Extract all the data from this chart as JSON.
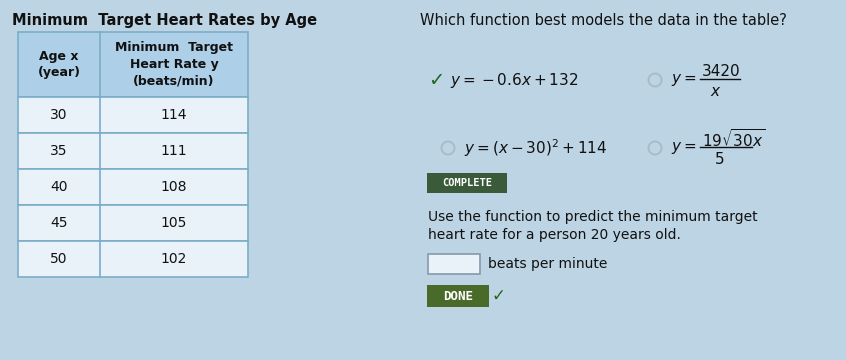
{
  "title_left": "Minimum  Target Heart Rates by Age",
  "title_right": "Which function best models the data in the table?",
  "table_headers": [
    "Age x\n(year)",
    "Minimum  Target\nHeart Rate y\n(beats/min)"
  ],
  "table_data": [
    [
      "30",
      "114"
    ],
    [
      "35",
      "111"
    ],
    [
      "40",
      "108"
    ],
    [
      "45",
      "105"
    ],
    [
      "50",
      "102"
    ]
  ],
  "header_bg": "#aecfe8",
  "table_bg": "#e8f2f8",
  "table_border": "#7aaec8",
  "bg_color": "#bdd4e4",
  "option1_formula": "$y = -0.6x + 132$",
  "option2_num": "3420",
  "option2_den": "x",
  "option3_formula": "$y = (x-30)^2 + 114$",
  "option4_num": "$19\\sqrt{30x}$",
  "option4_den": "5",
  "complete_btn_color": "#3a5a3a",
  "complete_btn_text": "COMPLETE",
  "done_btn_color": "#4a6a2a",
  "done_btn_text": "DONE",
  "predict_line1": "Use the function to predict the minimum target",
  "predict_line2": "heart rate for a person 20 years old.",
  "beats_label": "beats per minute",
  "input_box_color": "#e8f2f8",
  "check_color": "#226622",
  "circle_color": "#aabbc8",
  "text_color": "#111111",
  "title_fontsize": 10.5,
  "body_fontsize": 10
}
